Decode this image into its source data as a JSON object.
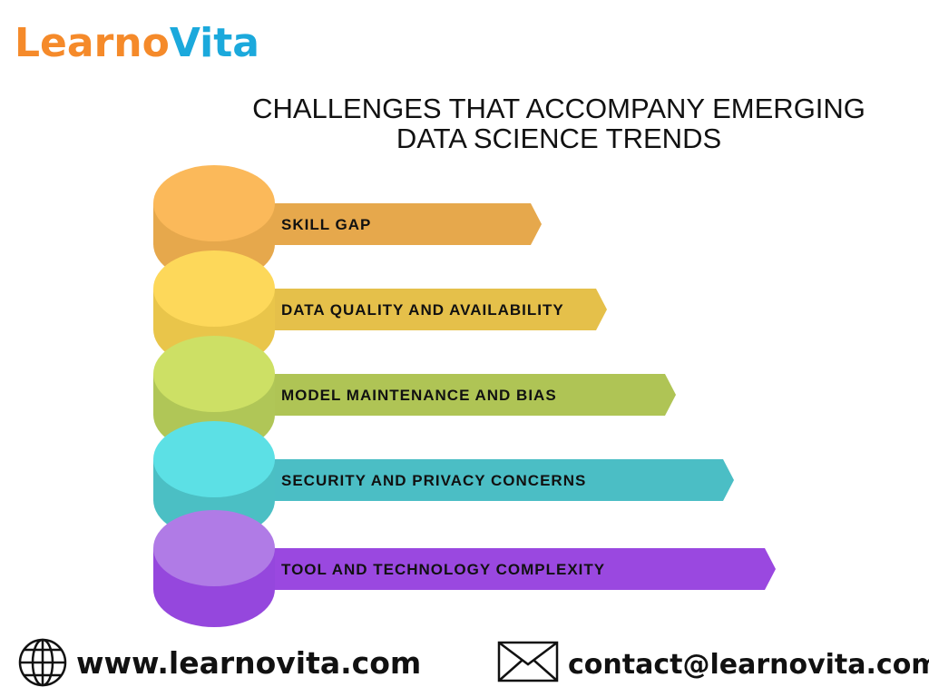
{
  "logo": {
    "part1": "Learno",
    "part2": "Vita"
  },
  "title": {
    "line1": "CHALLENGES THAT ACCOMPANY EMERGING",
    "line2": "DATA SCIENCE TRENDS"
  },
  "items": [
    {
      "label": "SKILL GAP"
    },
    {
      "label": "DATA QUALITY AND AVAILABILITY"
    },
    {
      "label": "MODEL MAINTENANCE AND BIAS"
    },
    {
      "label": "SECURITY AND PRIVACY CONCERNS"
    },
    {
      "label": "TOOL AND TECHNOLOGY COMPLEXITY"
    }
  ],
  "footer": {
    "website": "www.learnovita.com",
    "email": "contact@learnovita.com"
  }
}
